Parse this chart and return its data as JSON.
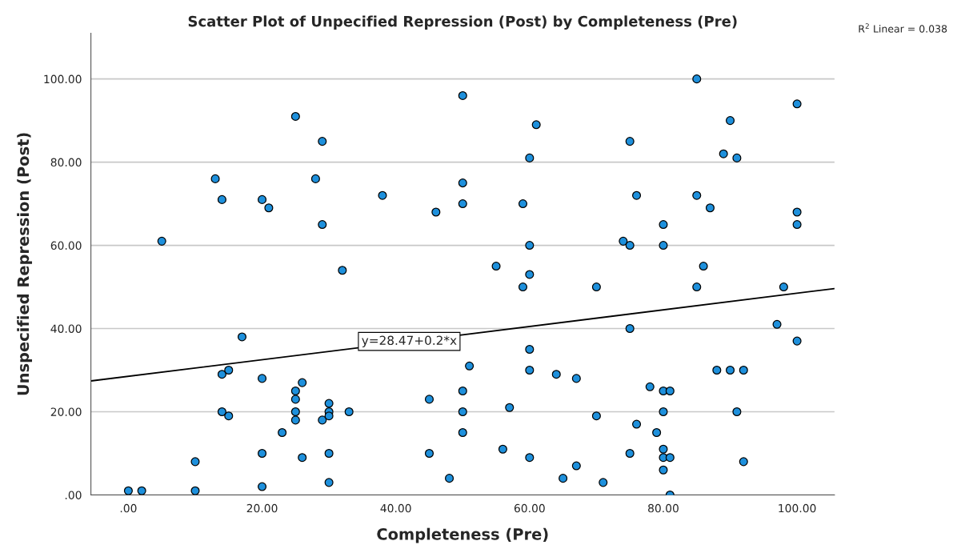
{
  "chart_data": {
    "type": "scatter",
    "title": "Scatter Plot of Unpecified Repression (Post) by Completeness (Pre)",
    "xlabel": "Completeness (Pre)",
    "ylabel": "Unspecified Repression (Post)",
    "xlim": [
      -5.6,
      105.6
    ],
    "ylim": [
      0,
      111
    ],
    "xticks": [
      {
        "value": 0,
        "label": ".00"
      },
      {
        "value": 20,
        "label": "20.00"
      },
      {
        "value": 40,
        "label": "40.00"
      },
      {
        "value": 60,
        "label": "60.00"
      },
      {
        "value": 80,
        "label": "80.00"
      },
      {
        "value": 100,
        "label": "100.00"
      }
    ],
    "yticks": [
      {
        "value": 0,
        "label": ".00"
      },
      {
        "value": 20,
        "label": "20.00"
      },
      {
        "value": 40,
        "label": "40.00"
      },
      {
        "value": 60,
        "label": "60.00"
      },
      {
        "value": 80,
        "label": "80.00"
      },
      {
        "value": 100,
        "label": "100.00"
      }
    ],
    "grid": "y",
    "marker": "circle",
    "series": [
      {
        "color": "#1e90dc",
        "x": [
          0,
          2,
          10,
          10,
          5,
          13,
          14,
          14,
          14,
          15,
          15,
          17,
          20,
          21,
          20,
          20,
          20,
          25,
          25,
          25,
          25,
          25,
          26,
          26,
          23,
          28,
          29,
          29,
          29,
          30,
          30,
          30,
          30,
          30,
          32,
          33,
          38,
          45,
          45,
          46,
          48,
          50,
          50,
          50,
          50,
          50,
          50,
          51,
          55,
          56,
          57,
          59,
          59,
          60,
          60,
          60,
          60,
          60,
          60,
          61,
          64,
          65,
          67,
          67,
          70,
          70,
          71,
          74,
          75,
          75,
          75,
          75,
          76,
          76,
          78,
          79,
          80,
          80,
          80,
          81,
          80,
          80,
          80,
          81,
          80,
          81,
          85,
          85,
          85,
          86,
          87,
          88,
          89,
          90,
          90,
          91,
          91,
          92,
          92,
          97,
          98,
          100,
          100,
          100,
          100
        ],
        "values": [
          1,
          1,
          1,
          8,
          61,
          76,
          71,
          29,
          20,
          30,
          19,
          38,
          71,
          69,
          28,
          10,
          2,
          91,
          25,
          23,
          20,
          18,
          27,
          9,
          15,
          76,
          85,
          65,
          18,
          22,
          20,
          19,
          10,
          3,
          54,
          20,
          72,
          23,
          10,
          68,
          4,
          96,
          75,
          70,
          25,
          20,
          15,
          31,
          55,
          11,
          21,
          70,
          50,
          81,
          60,
          53,
          35,
          30,
          9,
          89,
          29,
          4,
          28,
          7,
          50,
          19,
          3,
          61,
          85,
          60,
          40,
          10,
          72,
          17,
          26,
          15,
          65,
          60,
          25,
          25,
          20,
          11,
          9,
          9,
          6,
          0,
          100,
          72,
          50,
          55,
          69,
          30,
          82,
          90,
          30,
          81,
          20,
          30,
          8,
          41,
          50,
          94,
          68,
          65,
          37
        ]
      },
      {
        "type": "line",
        "color": "#000000",
        "marker": "none",
        "x": [
          -5.6,
          105.6
        ],
        "values": [
          27.4,
          49.6
        ]
      }
    ],
    "annotations": [
      {
        "text": "y=28.47+0.2*x",
        "x": 42,
        "y": 36.9
      },
      "R$^{2}$ Linear = 0.038"
    ]
  }
}
